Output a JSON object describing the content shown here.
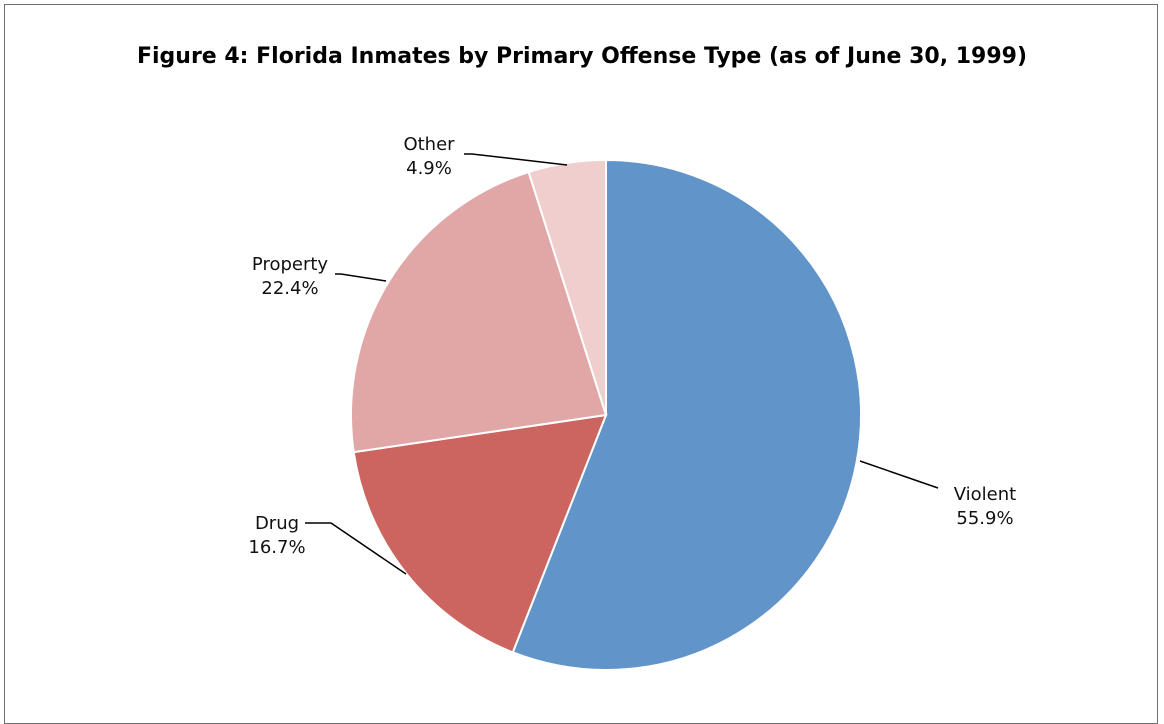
{
  "chart_data": {
    "type": "pie",
    "title": "Figure 4: Florida Inmates by Primary Offense Type (as of June 30, 1999)",
    "categories": [
      "Violent",
      "Drug",
      "Property",
      "Other"
    ],
    "values": [
      55.9,
      16.7,
      22.4,
      4.9
    ],
    "value_labels": [
      "55.9%",
      "16.7%",
      "22.4%",
      "4.9%"
    ],
    "colors": [
      "#6195c9",
      "#cc655f",
      "#e0a7a6",
      "#f0cecd"
    ],
    "start_angle": "12 o'clock",
    "direction": "clockwise",
    "legend": "none",
    "data_labels": "outside with leader lines"
  }
}
